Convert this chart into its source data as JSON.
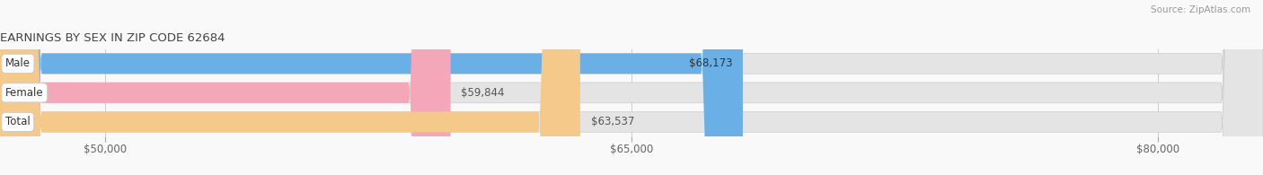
{
  "title": "EARNINGS BY SEX IN ZIP CODE 62684",
  "source": "Source: ZipAtlas.com",
  "categories": [
    "Male",
    "Female",
    "Total"
  ],
  "values": [
    68173,
    59844,
    63537
  ],
  "bar_colors": [
    "#6aafe6",
    "#f4a7b9",
    "#f5c98a"
  ],
  "bar_bg_color": "#e4e4e4",
  "xmin": 47000,
  "xmax": 83000,
  "xticks": [
    50000,
    65000,
    80000
  ],
  "xtick_labels": [
    "$50,000",
    "$65,000",
    "$80,000"
  ],
  "value_label_color": "#555555",
  "title_color": "#444444",
  "source_color": "#999999",
  "bar_height": 0.7,
  "fig_bg_color": "#f9f9f9",
  "figsize": [
    14.06,
    1.95
  ],
  "dpi": 100
}
